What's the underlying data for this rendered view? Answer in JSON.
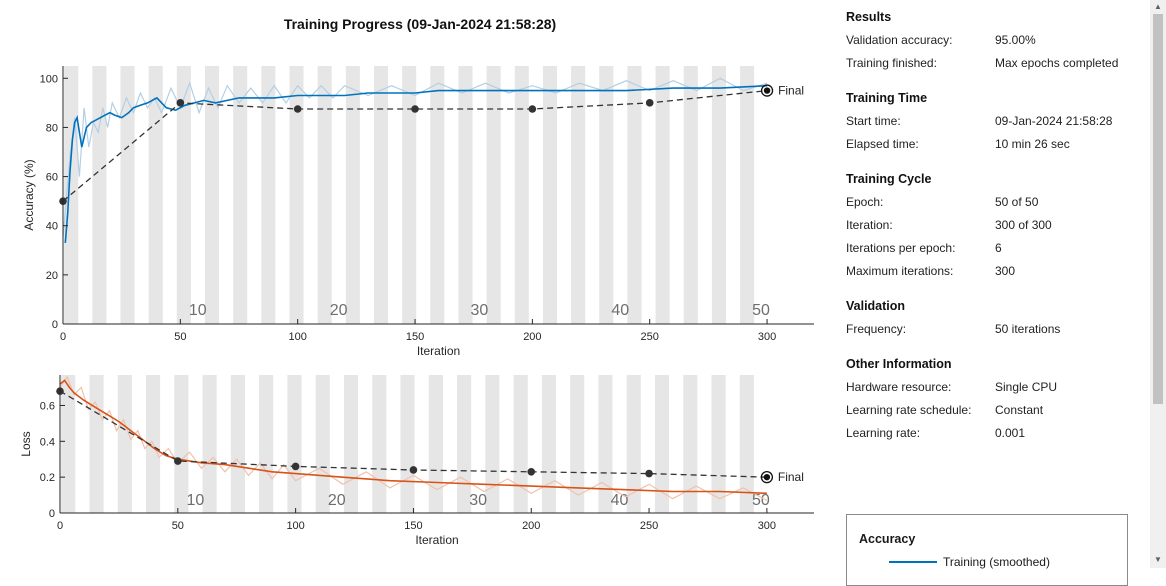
{
  "title": "Training Progress (09-Jan-2024 21:58:28)",
  "colors": {
    "accuracy": "#0072bd",
    "accuracy_raw": "#b4cfe4",
    "loss": "#d95319",
    "loss_raw": "#efc2ad",
    "validation": "#333333",
    "band": "#e6e6e6"
  },
  "chart_data": [
    {
      "type": "line",
      "ylabel": "Accuracy (%)",
      "xlabel": "Iteration",
      "xlim": [
        0,
        320
      ],
      "ylim": [
        0,
        105
      ],
      "xticks": [
        0,
        50,
        100,
        150,
        200,
        250,
        300
      ],
      "yticks": [
        0,
        20,
        40,
        60,
        80,
        100
      ],
      "epoch_labels": [
        10,
        20,
        30,
        40,
        50
      ],
      "series": [
        {
          "key": "training_smoothed",
          "name": "Training (smoothed)",
          "x": [
            1,
            2,
            3,
            4,
            5,
            6,
            7,
            8,
            9,
            10,
            12,
            14,
            16,
            18,
            20,
            22,
            25,
            28,
            30,
            33,
            36,
            40,
            44,
            48,
            52,
            56,
            60,
            65,
            70,
            75,
            80,
            90,
            100,
            110,
            120,
            130,
            140,
            150,
            160,
            170,
            180,
            200,
            220,
            240,
            260,
            280,
            300
          ],
          "y": [
            33,
            45,
            62,
            75,
            82,
            84,
            78,
            72,
            76,
            80,
            82,
            83,
            84,
            85,
            86,
            85,
            84,
            86,
            88,
            89,
            90,
            92,
            88,
            87,
            89,
            90,
            91,
            90,
            91,
            92,
            92,
            92,
            93,
            93,
            93,
            94,
            94,
            94,
            95,
            95,
            95,
            95,
            95,
            95,
            96,
            96,
            97
          ]
        },
        {
          "key": "training_raw",
          "x": [
            0,
            3,
            5,
            7,
            9,
            11,
            13,
            15,
            17,
            19,
            21,
            24,
            27,
            30,
            33,
            36,
            39,
            42,
            46,
            50,
            54,
            58,
            62,
            66,
            70,
            75,
            80,
            85,
            90,
            95,
            100,
            105,
            110,
            115,
            120,
            130,
            140,
            150,
            160,
            170,
            180,
            190,
            200,
            210,
            220,
            230,
            240,
            250,
            260,
            270,
            280,
            290,
            300
          ],
          "y": [
            35,
            68,
            84,
            60,
            88,
            72,
            82,
            78,
            88,
            80,
            90,
            84,
            92,
            86,
            94,
            88,
            92,
            86,
            96,
            88,
            98,
            86,
            96,
            88,
            97,
            90,
            96,
            90,
            97,
            90,
            97,
            92,
            97,
            92,
            97,
            93,
            97,
            93,
            98,
            94,
            98,
            94,
            97,
            94,
            98,
            95,
            99,
            95,
            99,
            95,
            100,
            95,
            98
          ]
        },
        {
          "key": "validation",
          "x": [
            0,
            50,
            100,
            150,
            200,
            250,
            300
          ],
          "y": [
            50,
            90,
            87.5,
            87.5,
            87.5,
            90,
            95
          ]
        }
      ],
      "final_label": "Final"
    },
    {
      "type": "line",
      "ylabel": "Loss",
      "xlabel": "Iteration",
      "xlim": [
        0,
        320
      ],
      "ylim": [
        0,
        0.77
      ],
      "xticks": [
        0,
        50,
        100,
        150,
        200,
        250,
        300
      ],
      "yticks": [
        0,
        0.2,
        0.4,
        0.6
      ],
      "epoch_labels": [
        10,
        20,
        30,
        40,
        50
      ],
      "series": [
        {
          "key": "training_smoothed",
          "x": [
            0,
            2,
            4,
            6,
            10,
            15,
            20,
            25,
            30,
            35,
            40,
            45,
            50,
            60,
            70,
            80,
            90,
            100,
            120,
            140,
            160,
            180,
            200,
            220,
            240,
            260,
            280,
            300
          ],
          "y": [
            0.72,
            0.74,
            0.7,
            0.67,
            0.63,
            0.59,
            0.55,
            0.51,
            0.46,
            0.41,
            0.36,
            0.32,
            0.3,
            0.28,
            0.27,
            0.25,
            0.23,
            0.22,
            0.2,
            0.18,
            0.17,
            0.16,
            0.15,
            0.14,
            0.13,
            0.12,
            0.12,
            0.11
          ]
        },
        {
          "key": "training_raw",
          "x": [
            0,
            3,
            6,
            9,
            12,
            15,
            18,
            21,
            24,
            27,
            30,
            33,
            36,
            39,
            42,
            46,
            50,
            55,
            60,
            65,
            70,
            75,
            80,
            85,
            90,
            95,
            100,
            110,
            120,
            130,
            140,
            150,
            160,
            170,
            180,
            190,
            200,
            210,
            220,
            230,
            240,
            250,
            260,
            270,
            280,
            290,
            300
          ],
          "y": [
            0.7,
            0.76,
            0.66,
            0.7,
            0.58,
            0.62,
            0.52,
            0.57,
            0.46,
            0.52,
            0.41,
            0.46,
            0.36,
            0.4,
            0.31,
            0.36,
            0.28,
            0.34,
            0.25,
            0.31,
            0.23,
            0.3,
            0.21,
            0.28,
            0.19,
            0.27,
            0.18,
            0.25,
            0.16,
            0.23,
            0.14,
            0.21,
            0.13,
            0.2,
            0.12,
            0.19,
            0.11,
            0.18,
            0.1,
            0.17,
            0.09,
            0.16,
            0.08,
            0.15,
            0.08,
            0.14,
            0.07
          ]
        },
        {
          "key": "validation",
          "x": [
            0,
            50,
            100,
            150,
            200,
            250,
            300
          ],
          "y": [
            0.68,
            0.29,
            0.26,
            0.24,
            0.23,
            0.22,
            0.2
          ]
        }
      ],
      "final_label": "Final"
    }
  ],
  "info": {
    "results": {
      "title": "Results",
      "rows": [
        {
          "key": "Validation accuracy:",
          "value": "95.00%"
        },
        {
          "key": "Training finished:",
          "value": "Max epochs completed"
        }
      ]
    },
    "training_time": {
      "title": "Training Time",
      "rows": [
        {
          "key": "Start time:",
          "value": "09-Jan-2024 21:58:28"
        },
        {
          "key": "Elapsed time:",
          "value": "10 min 26 sec"
        }
      ]
    },
    "training_cycle": {
      "title": "Training Cycle",
      "rows": [
        {
          "key": "Epoch:",
          "value": "50 of 50"
        },
        {
          "key": "Iteration:",
          "value": "300 of 300"
        },
        {
          "key": "Iterations per epoch:",
          "value": "6"
        },
        {
          "key": "Maximum iterations:",
          "value": "300"
        }
      ]
    },
    "validation": {
      "title": "Validation",
      "rows": [
        {
          "key": "Frequency:",
          "value": "50 iterations"
        }
      ]
    },
    "other": {
      "title": "Other Information",
      "rows": [
        {
          "key": "Hardware resource:",
          "value": "Single CPU"
        },
        {
          "key": "Learning rate schedule:",
          "value": "Constant"
        },
        {
          "key": "Learning rate:",
          "value": "0.001"
        }
      ]
    }
  },
  "legend": {
    "title": "Accuracy",
    "items": [
      {
        "label": "Training (smoothed)"
      }
    ]
  }
}
